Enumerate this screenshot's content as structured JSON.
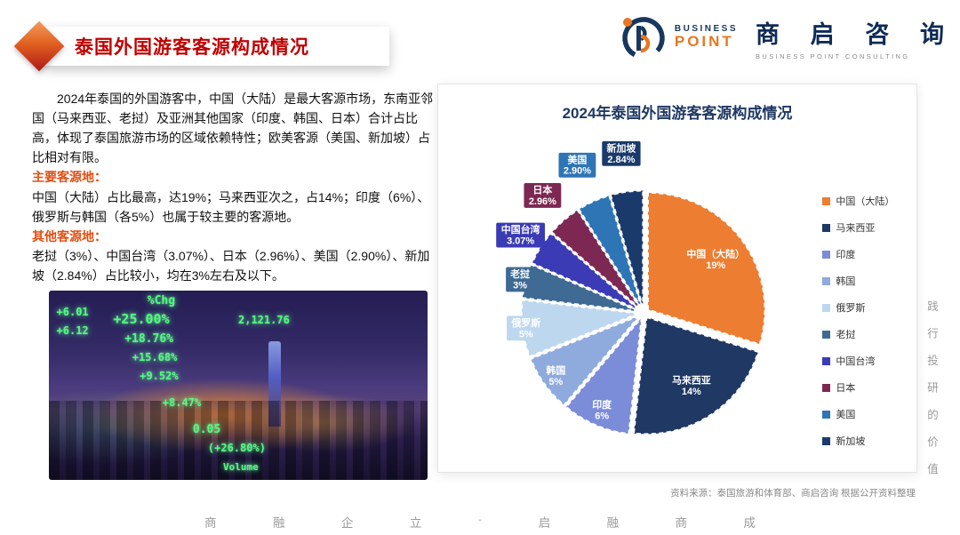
{
  "slide": {
    "title": "泰国外国游客客源构成情况",
    "footer_chars": [
      "商",
      "融",
      "企",
      "立",
      "·",
      "启",
      "融",
      "商",
      "成"
    ],
    "side_text": "践行投研的价值"
  },
  "logo": {
    "brand_top": "BUSINESS",
    "brand_bottom": "POINT",
    "cn_chars": [
      "商",
      "启",
      "咨",
      "询"
    ],
    "tagline": "BUSINESS POINT CONSULTING"
  },
  "body": {
    "p1": "2024年泰国的外国游客中，中国（大陆）是最大客源市场，东南亚邻国（马来西亚、老挝）及亚洲其他国家（印度、韩国、日本）合计占比高，体现了泰国旅游市场的区域依赖特性；欧美客源（美国、新加坡）占比相对有限。",
    "h2": "主要客源地：",
    "p2": "中国（大陆）占比最高，达19%；马来西亚次之，占14%；印度（6%）、俄罗斯与韩国（各5%）也属于较主要的客源地。",
    "h3": "其他客源地：",
    "p3": "老挝（3%）、中国台湾（3.07%）、日本（2.96%）、美国（2.90%）、新加坡（2.84%）占比较小，均在3%左右及以下。"
  },
  "photo": {
    "tickers": [
      "%Chg",
      "+25.00%",
      "2,121.76",
      "+18.76%",
      "+15.68%",
      "+9.52%",
      "+6.01",
      "+6.12",
      "+8.47%",
      "0.05",
      "(+26.80%)",
      "Volume"
    ]
  },
  "chart_data": {
    "type": "pie",
    "title": "2024年泰国外国游客客源构成情况",
    "legend_position": "right",
    "series": [
      {
        "name": "中国（大陆）",
        "value": 19,
        "label": "19%",
        "color": "#ED7D31"
      },
      {
        "name": "马来西亚",
        "value": 14,
        "label": "14%",
        "color": "#1F3864"
      },
      {
        "name": "印度",
        "value": 6,
        "label": "6%",
        "color": "#7B8CD9"
      },
      {
        "name": "韩国",
        "value": 5,
        "label": "5%",
        "color": "#8FAADC"
      },
      {
        "name": "俄罗斯",
        "value": 5,
        "label": "5%",
        "color": "#BDD7EE"
      },
      {
        "name": "老挝",
        "value": 3,
        "label": "3%",
        "color": "#3E6A94"
      },
      {
        "name": "中国台湾",
        "value": 3.07,
        "label": "3.07%",
        "color": "#3B3BB5"
      },
      {
        "name": "日本",
        "value": 2.96,
        "label": "2.96%",
        "color": "#7D2852"
      },
      {
        "name": "美国",
        "value": 2.9,
        "label": "2.90%",
        "color": "#2E75B6"
      },
      {
        "name": "新加坡",
        "value": 2.84,
        "label": "2.84%",
        "color": "#1A3A6B"
      }
    ],
    "source": "资料来源：泰国旅游和体育部、商启咨询 根据公开资料整理"
  }
}
